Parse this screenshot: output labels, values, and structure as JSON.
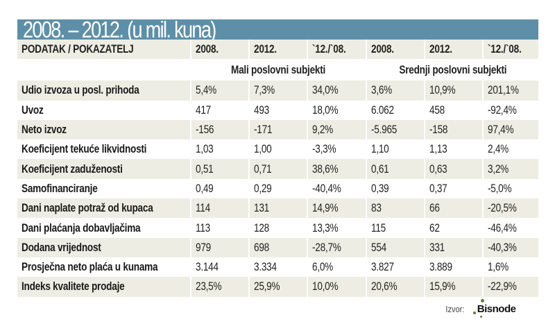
{
  "title": "2008. – 2012. (u mil. kuna)",
  "header": [
    "PODATAK / POKAZATELJ",
    "2008.",
    "2012.",
    "`12./`08.",
    "2008.",
    "2012.",
    "`12./`08."
  ],
  "groups": [
    "Mali poslovni subjekti",
    "Srednji poslovni subjekti"
  ],
  "rows": [
    {
      "label": "Udio izvoza u posl. prihoda",
      "values": [
        "5,4%",
        "7,3%",
        "34,0%",
        "3,6%",
        "10,9%",
        "201,1%"
      ]
    },
    {
      "label": "Uvoz",
      "values": [
        "417",
        "493",
        "18,0%",
        "6.062",
        "458",
        "-92,4%"
      ]
    },
    {
      "label": "Neto izvoz",
      "values": [
        "-156",
        "-171",
        "9,2%",
        "-5.965",
        "-158",
        "97,4%"
      ]
    },
    {
      "label": "Koeficijent tekuće likvidnosti",
      "values": [
        "1,03",
        "1,00",
        "-3,3%",
        "1,10",
        "1,13",
        "2,4%"
      ]
    },
    {
      "label": "Koeficijent zaduženosti",
      "values": [
        "0,51",
        "0,71",
        "38,6%",
        "0,61",
        "0,63",
        "3,2%"
      ]
    },
    {
      "label": "Samofinanciranje",
      "values": [
        "0,49",
        "0,29",
        "-40,4%",
        "0,39",
        "0,37",
        "-5,0%"
      ]
    },
    {
      "label": "Dani naplate potraž od kupaca",
      "values": [
        "114",
        "131",
        "14,9%",
        "83",
        "66",
        "-20,5%"
      ]
    },
    {
      "label": "Dani plaćanja dobavljačima",
      "values": [
        "113",
        "128",
        "13,3%",
        "115",
        "62",
        "-46,4%"
      ]
    },
    {
      "label": "Dodana vrijednost",
      "values": [
        "979",
        "698",
        "-28,7%",
        "554",
        "331",
        "-40,3%"
      ]
    },
    {
      "label": "Prosječna neto plaća u kunama",
      "values": [
        "3.144",
        "3.334",
        "6,0%",
        "3.827",
        "3.889",
        "1,6%"
      ]
    },
    {
      "label": "Indeks kvalitete prodaje",
      "values": [
        "23,5%",
        "25,9%",
        "10,0%",
        "20,6%",
        "15,9%",
        "-22,9%"
      ]
    }
  ],
  "source": {
    "label": "Izvor:",
    "logo": "Bisnode"
  },
  "colors": {
    "title_bar": "#5e8fa8",
    "stripe": "#eeede4",
    "logo_dot": "#5a8a1e"
  }
}
